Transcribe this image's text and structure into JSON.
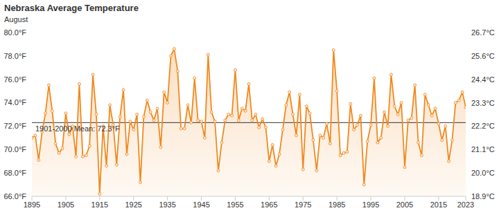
{
  "chart_data": {
    "type": "line",
    "title": "Nebraska Average Temperature",
    "subtitle": "August",
    "color": "#f0891e",
    "marker": "circle",
    "grid": false,
    "x": [
      1895,
      1896,
      1897,
      1898,
      1899,
      1900,
      1901,
      1902,
      1903,
      1904,
      1905,
      1906,
      1907,
      1908,
      1909,
      1910,
      1911,
      1912,
      1913,
      1914,
      1915,
      1916,
      1917,
      1918,
      1919,
      1920,
      1921,
      1922,
      1923,
      1924,
      1925,
      1926,
      1927,
      1928,
      1929,
      1930,
      1931,
      1932,
      1933,
      1934,
      1935,
      1936,
      1937,
      1938,
      1939,
      1940,
      1941,
      1942,
      1943,
      1944,
      1945,
      1946,
      1947,
      1948,
      1949,
      1950,
      1951,
      1952,
      1953,
      1954,
      1955,
      1956,
      1957,
      1958,
      1959,
      1960,
      1961,
      1962,
      1963,
      1964,
      1965,
      1966,
      1967,
      1968,
      1969,
      1970,
      1971,
      1972,
      1973,
      1974,
      1975,
      1976,
      1977,
      1978,
      1979,
      1980,
      1981,
      1982,
      1983,
      1984,
      1985,
      1986,
      1987,
      1988,
      1989,
      1990,
      1991,
      1992,
      1993,
      1994,
      1995,
      1996,
      1997,
      1998,
      1999,
      2000,
      2001,
      2002,
      2003,
      2004,
      2005,
      2006,
      2007,
      2008,
      2009,
      2010,
      2011,
      2012,
      2013,
      2014,
      2015,
      2016,
      2017,
      2018,
      2019,
      2020,
      2021,
      2022,
      2023
    ],
    "values": [
      71.0,
      71.2,
      69.1,
      71.5,
      73.1,
      75.5,
      73.3,
      70.5,
      69.7,
      70.1,
      73.1,
      71.3,
      72.0,
      69.4,
      75.6,
      69.4,
      69.5,
      70.3,
      76.4,
      73.0,
      66.2,
      72.0,
      68.6,
      73.8,
      72.1,
      68.7,
      72.8,
      75.1,
      69.6,
      72.4,
      71.7,
      73.0,
      67.2,
      72.8,
      74.2,
      73.2,
      72.5,
      73.5,
      70.2,
      74.9,
      74.0,
      78.0,
      78.6,
      76.7,
      71.8,
      71.8,
      73.8,
      72.3,
      76.1,
      72.5,
      72.4,
      71.0,
      78.1,
      73.2,
      72.4,
      68.2,
      70.6,
      72.5,
      73.0,
      72.9,
      76.8,
      72.5,
      73.5,
      73.3,
      75.6,
      72.5,
      73.0,
      71.9,
      72.6,
      71.9,
      69.0,
      70.4,
      68.6,
      69.6,
      71.7,
      73.8,
      74.9,
      73.0,
      71.2,
      74.7,
      68.3,
      73.7,
      73.1,
      70.8,
      68.2,
      71.2,
      71.0,
      72.2,
      70.5,
      78.5,
      75.0,
      69.5,
      69.7,
      69.8,
      73.9,
      71.7,
      72.1,
      72.9,
      67.0,
      70.7,
      72.1,
      76.1,
      70.6,
      71.0,
      73.2,
      72.0,
      76.4,
      73.7,
      73.0,
      74.0,
      68.5,
      72.5,
      72.7,
      75.5,
      70.6,
      69.5,
      74.7,
      73.8,
      72.9,
      73.5,
      72.2,
      70.8,
      72.0,
      69.0,
      70.8,
      74.0,
      74.2,
      74.9,
      73.6
    ],
    "xlim": [
      1895,
      2023
    ],
    "xticks": [
      1895,
      1905,
      1915,
      1925,
      1935,
      1945,
      1955,
      1965,
      1975,
      1985,
      1995,
      2005,
      2015,
      2023
    ],
    "ylim": [
      66,
      80
    ],
    "yticks": [
      {
        "value": 66,
        "label": "66.0°F"
      },
      {
        "value": 68,
        "label": "68.0°F"
      },
      {
        "value": 70,
        "label": "70.0°F"
      },
      {
        "value": 72,
        "label": "72.0°F"
      },
      {
        "value": 74,
        "label": "74.0°F"
      },
      {
        "value": 76,
        "label": "76.0°F"
      },
      {
        "value": 78,
        "label": "78.0°F"
      },
      {
        "value": 80,
        "label": "80.0°F"
      }
    ],
    "y2lim": [
      18.89,
      26.67
    ],
    "y2ticks": [
      {
        "value": 18.89,
        "label": "18.9°C"
      },
      {
        "value": 20.0,
        "label": "20.0°C"
      },
      {
        "value": 21.11,
        "label": "21.1°C"
      },
      {
        "value": 22.22,
        "label": "22.2°C"
      },
      {
        "value": 23.33,
        "label": "23.3°C"
      },
      {
        "value": 24.44,
        "label": "24.4°C"
      },
      {
        "value": 25.56,
        "label": "25.6°C"
      },
      {
        "value": 26.67,
        "label": "26.7°C"
      }
    ],
    "annotations": [
      {
        "text": "1901-2000 Mean: 72.3°F",
        "value": 72.3
      }
    ]
  }
}
